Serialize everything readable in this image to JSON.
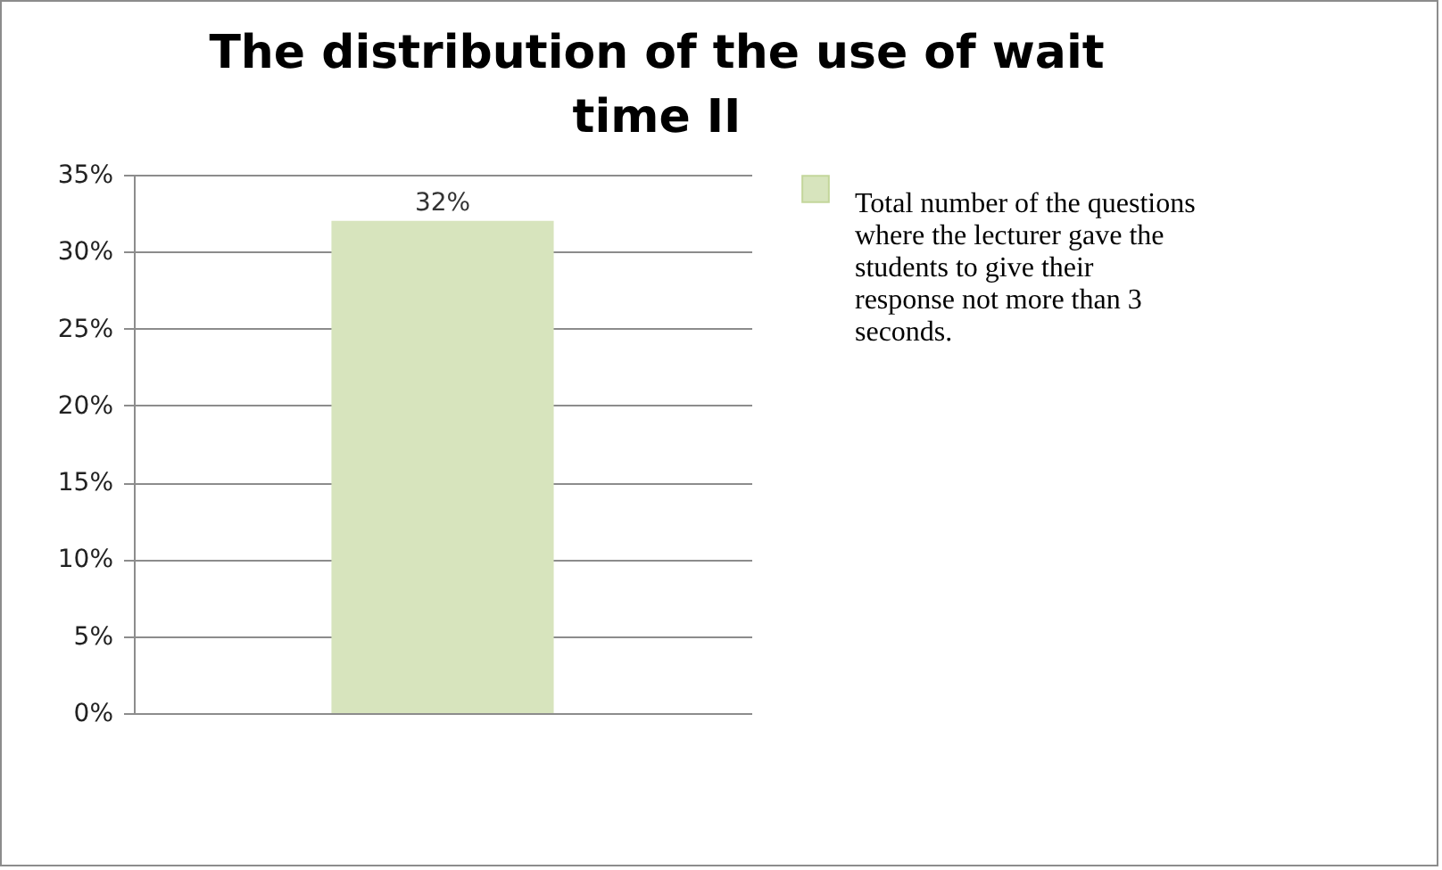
{
  "chart_data": {
    "type": "bar",
    "title": "The distribution of the use of wait time II",
    "categories": [
      null
    ],
    "series": [
      {
        "name": "Total number of the questions where the lecturer gave the students to give their response not more than 3 seconds.",
        "color": "#d7e4bd",
        "values": [
          32
        ],
        "value_labels": [
          "32%"
        ]
      }
    ],
    "ylim": [
      0,
      35
    ],
    "yticks": [
      {
        "value": 0,
        "label": "0%"
      },
      {
        "value": 5,
        "label": "5%"
      },
      {
        "value": 10,
        "label": "10%"
      },
      {
        "value": 15,
        "label": "15%"
      },
      {
        "value": 20,
        "label": "20%"
      },
      {
        "value": 25,
        "label": "25%"
      },
      {
        "value": 30,
        "label": "30%"
      },
      {
        "value": 35,
        "label": "35%"
      }
    ],
    "grid": "y",
    "legend": "top right"
  }
}
